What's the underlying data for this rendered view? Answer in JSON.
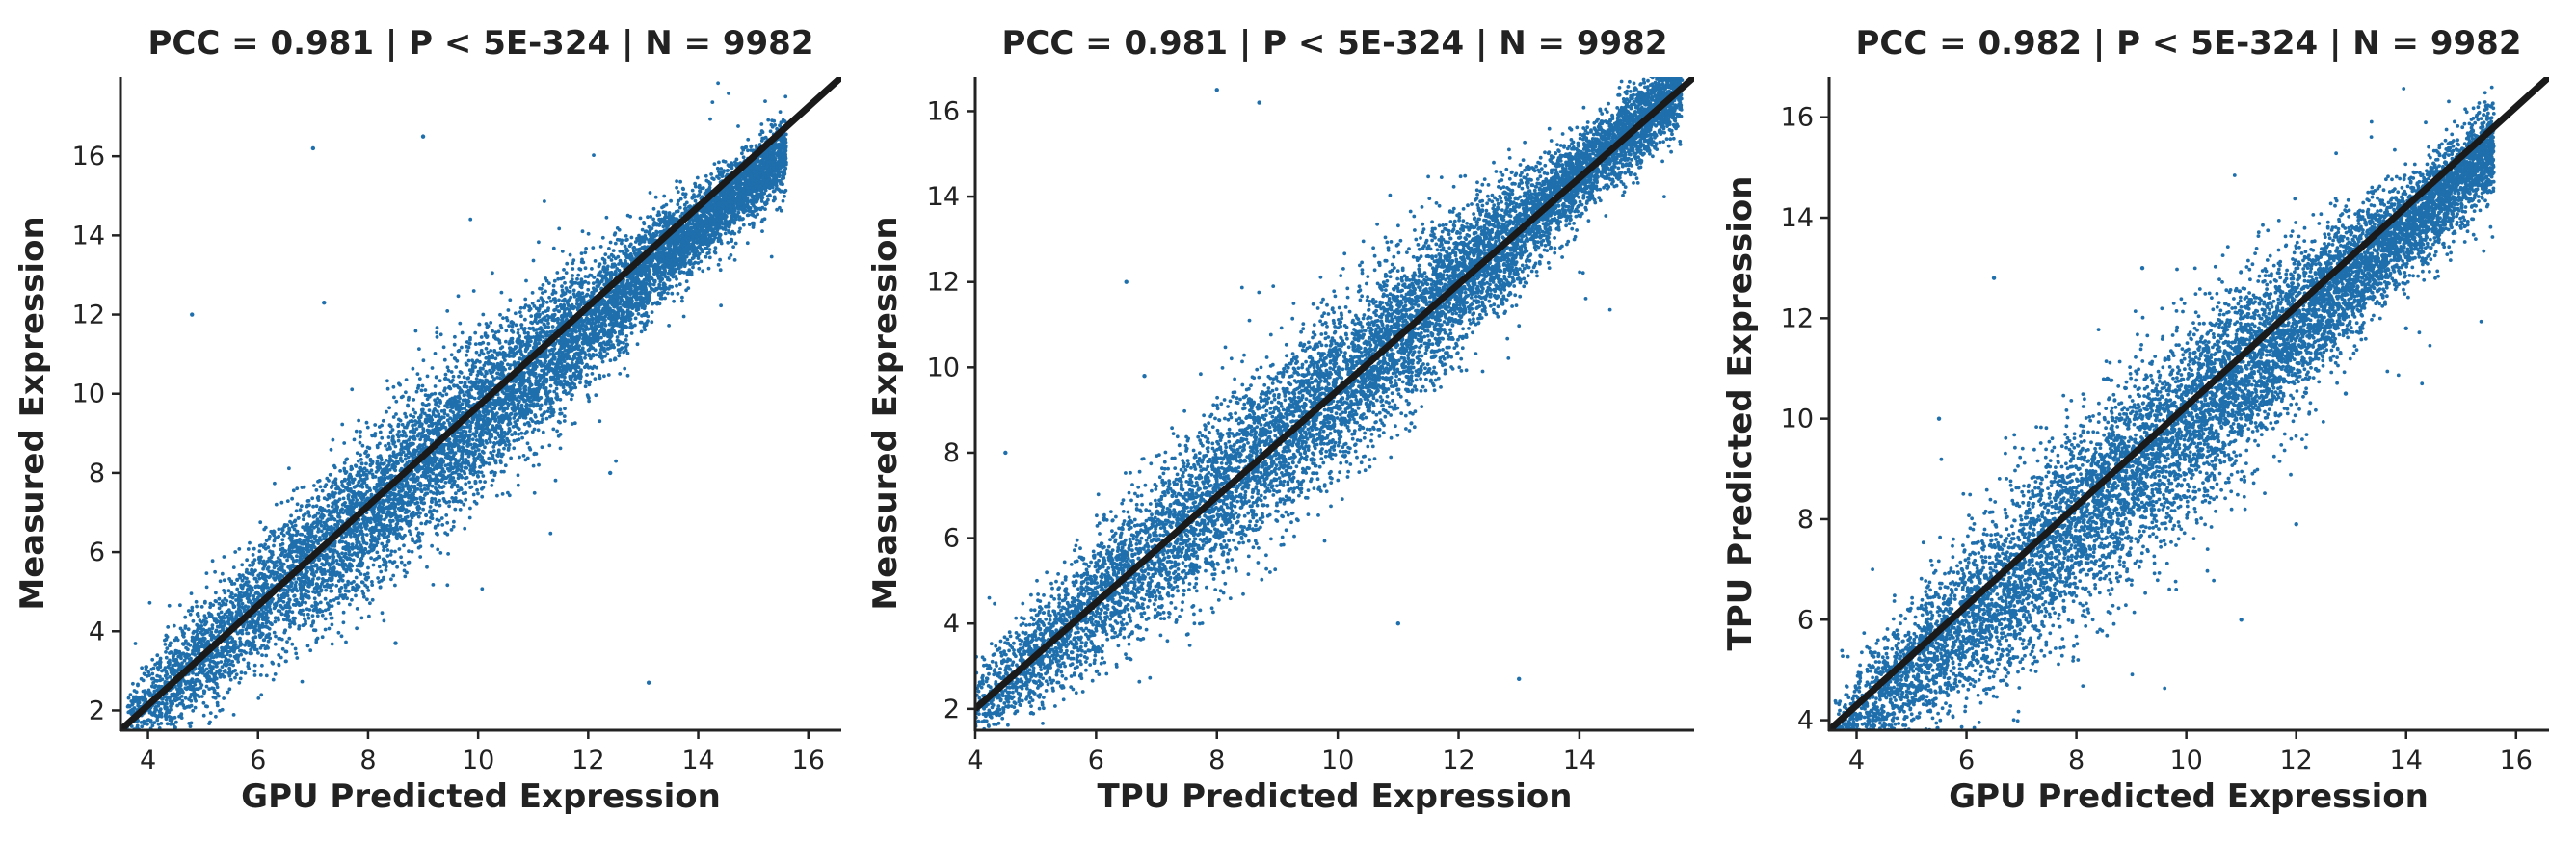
{
  "chart_data": [
    {
      "type": "scatter",
      "title": "PCC =  0.981 | P <  5E-324 | N = 9982",
      "xlabel": "GPU Predicted Expression",
      "ylabel": "Measured Expression",
      "xlim": [
        3.5,
        16.6
      ],
      "ylim": [
        1.5,
        18.0
      ],
      "xticks": [
        "4",
        "6",
        "8",
        "10",
        "12",
        "14",
        "16"
      ],
      "yticks": [
        "2",
        "4",
        "6",
        "8",
        "10",
        "12",
        "14",
        "16"
      ],
      "point_color": "#1f6fad",
      "line_color": "#1a1a1a",
      "diagonal": [
        [
          3.5,
          1.5
        ],
        [
          16.6,
          18.0
        ]
      ],
      "trend": {
        "x_min": 3.6,
        "x_max": 15.6,
        "y_intercept": -2.6,
        "slope": 1.2
      },
      "n_points": 9982,
      "outliers": [
        [
          7.0,
          16.2
        ],
        [
          9.0,
          16.5
        ],
        [
          4.8,
          12.0
        ],
        [
          7.2,
          12.3
        ],
        [
          12.4,
          8.0
        ],
        [
          13.1,
          2.7
        ],
        [
          8.5,
          3.7
        ]
      ],
      "grid": false,
      "legend": "none"
    },
    {
      "type": "scatter",
      "title": "PCC =  0.981 | P <  5E-324 | N = 9982",
      "xlabel": "TPU Predicted Expression",
      "ylabel": "Measured Expression",
      "xlim": [
        4.0,
        15.9
      ],
      "ylim": [
        1.5,
        16.8
      ],
      "xticks": [
        "4",
        "6",
        "8",
        "10",
        "12",
        "14"
      ],
      "yticks": [
        "2",
        "4",
        "6",
        "8",
        "10",
        "12",
        "14",
        "16"
      ],
      "point_color": "#1f6fad",
      "line_color": "#1a1a1a",
      "diagonal": [
        [
          4.0,
          2.0
        ],
        [
          15.9,
          16.8
        ]
      ],
      "trend": {
        "x_min": 4.0,
        "x_max": 15.7,
        "y_intercept": -3.0,
        "slope": 1.25
      },
      "n_points": 9982,
      "outliers": [
        [
          8.0,
          16.5
        ],
        [
          8.7,
          16.2
        ],
        [
          6.5,
          12.0
        ],
        [
          6.8,
          9.8
        ],
        [
          13.0,
          2.7
        ],
        [
          11.0,
          4.0
        ],
        [
          4.5,
          8.0
        ]
      ],
      "grid": false,
      "legend": "none"
    },
    {
      "type": "scatter",
      "title": "PCC =  0.982 | P <  5E-324 | N = 9982",
      "xlabel": "GPU Predicted Expression",
      "ylabel": "TPU Predicted Expression",
      "xlim": [
        3.5,
        16.6
      ],
      "ylim": [
        3.8,
        16.8
      ],
      "xticks": [
        "4",
        "6",
        "8",
        "10",
        "12",
        "14",
        "16"
      ],
      "yticks": [
        "4",
        "6",
        "8",
        "10",
        "12",
        "14",
        "16"
      ],
      "point_color": "#1f6fad",
      "line_color": "#1a1a1a",
      "diagonal": [
        [
          3.5,
          3.8
        ],
        [
          16.6,
          16.8
        ]
      ],
      "trend": {
        "x_min": 3.6,
        "x_max": 15.6,
        "y_intercept": 0.1,
        "slope": 0.98
      },
      "n_points": 9982,
      "outliers": [
        [
          6.5,
          12.8
        ],
        [
          9.2,
          13.0
        ],
        [
          5.5,
          10.0
        ],
        [
          12.9,
          10.5
        ],
        [
          12.0,
          7.9
        ],
        [
          11.0,
          6.0
        ],
        [
          14.0,
          11.8
        ]
      ],
      "grid": false,
      "legend": "none"
    }
  ]
}
